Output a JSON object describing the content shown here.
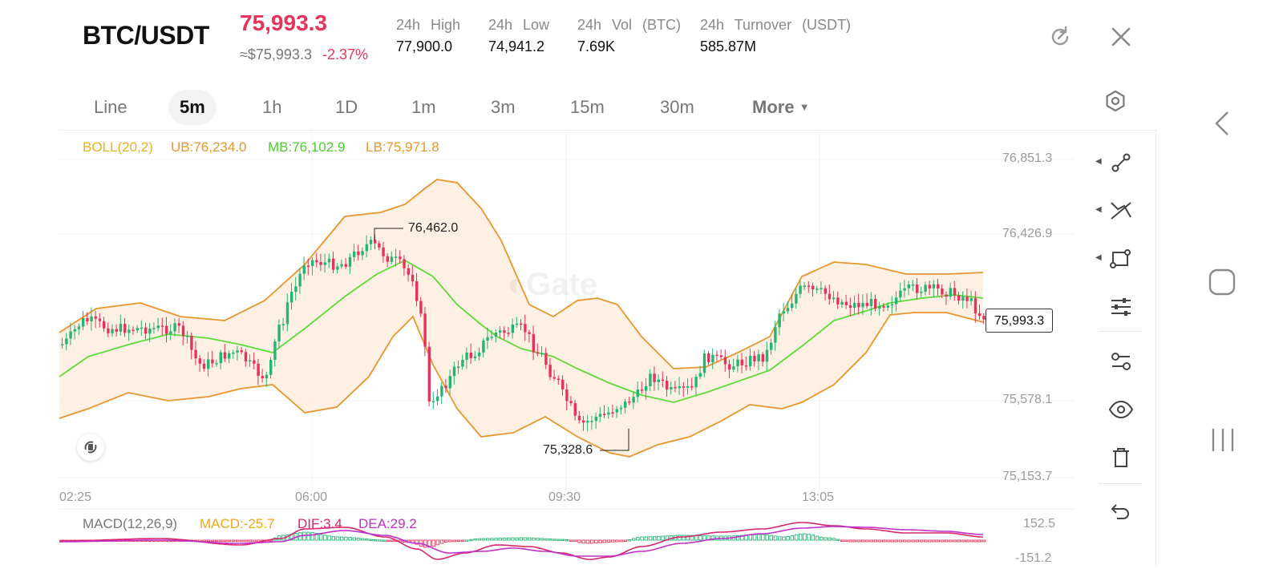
{
  "header": {
    "pair": "BTC/USDT",
    "price": "75,993.3",
    "approx_usd": "≈$75,993.3",
    "change": "-2.37%",
    "stats": [
      {
        "label": "24h High",
        "value": "77,900.0"
      },
      {
        "label": "24h Low",
        "value": "74,941.2"
      },
      {
        "label": "24h Vol (BTC)",
        "value": "7.69K"
      },
      {
        "label": "24h Turnover (USDT)",
        "value": "585.87M"
      }
    ]
  },
  "tabs": [
    "Line",
    "5m",
    "1h",
    "1D",
    "1m",
    "3m",
    "15m",
    "30m",
    "More"
  ],
  "active_tab": "5m",
  "boll": {
    "label": "BOLL(20,2)",
    "ub": "UB:76,234.0",
    "mb": "MB:76,102.9",
    "lb": "LB:75,971.8"
  },
  "price_axis": [
    "76,851.3",
    "76,426.9",
    "75,578.1",
    "75,153.7"
  ],
  "time_axis": [
    "02:25",
    "06:00",
    "09:30",
    "13:05"
  ],
  "high_marker": "76,462.0",
  "low_marker": "75,328.6",
  "current_price_tag": "75,993.3",
  "macd": {
    "label": "MACD(12,26,9)",
    "macd": "MACD:-25.7",
    "dif": "DIF:3.4",
    "dea": "DEA:29.2",
    "axis_top": "152.5",
    "axis_bottom": "-151.2"
  },
  "watermark": "Gate",
  "colors": {
    "up": "#22b573",
    "down": "#e6335a",
    "boll_band": "#e8962e",
    "boll_mid": "#5fd93b",
    "boll_label": "#e9b21c",
    "macd_label": "#f0a81a",
    "dif": "#d6286d",
    "dea": "#c030c9"
  },
  "icons": {
    "refresh": "refresh-icon",
    "close": "close-icon",
    "settings": "settings-hex-icon",
    "draw_tools": [
      "line-segment-icon",
      "trend-line-icon",
      "rectangle-icon",
      "indicator-sliders-icon",
      "pattern-icon",
      "eye-icon",
      "trash-icon",
      "undo-icon"
    ]
  }
}
